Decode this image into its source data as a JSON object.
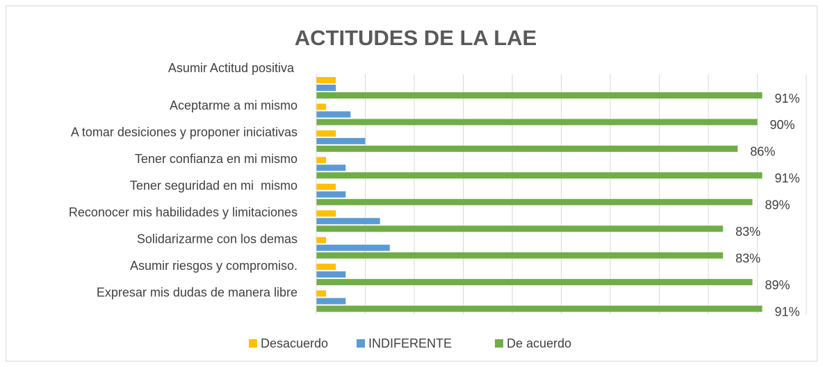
{
  "chart_data": {
    "type": "bar",
    "orientation": "horizontal",
    "title": "ACTITUDES DE LA LAE",
    "categories": [
      "Asumir Actitud positiva ",
      "Aceptarme a mi mismo",
      "A tomar desiciones y proponer iniciativas",
      "Tener confianza en mi mismo",
      "Tener seguridad en mi  mismo",
      "Reconocer mis habilidades y limitaciones",
      "Solidarizarme con los demas",
      "Asumir riesgos y compromiso.",
      "Expresar mis dudas de manera libre"
    ],
    "series": [
      {
        "name": "Desacuerdo",
        "color": "#ffc000",
        "values": [
          4,
          2,
          4,
          2,
          4,
          4,
          2,
          4,
          2
        ]
      },
      {
        "name": "INDIFERENTE",
        "color": "#5b9bd5",
        "values": [
          4,
          7,
          10,
          6,
          6,
          13,
          15,
          6,
          6
        ]
      },
      {
        "name": "De acuerdo",
        "color": "#70ad47",
        "values": [
          91,
          90,
          86,
          91,
          89,
          83,
          83,
          89,
          91
        ],
        "value_labels": [
          "91%",
          "90%",
          "86%",
          "91%",
          "89%",
          "83%",
          "83%",
          "89%",
          "91%"
        ]
      }
    ],
    "xlim": [
      0,
      100
    ],
    "xticks": [
      0,
      10,
      20,
      30,
      40,
      50,
      60,
      70,
      80,
      90,
      100
    ],
    "grid": true,
    "legend": "bottom"
  }
}
